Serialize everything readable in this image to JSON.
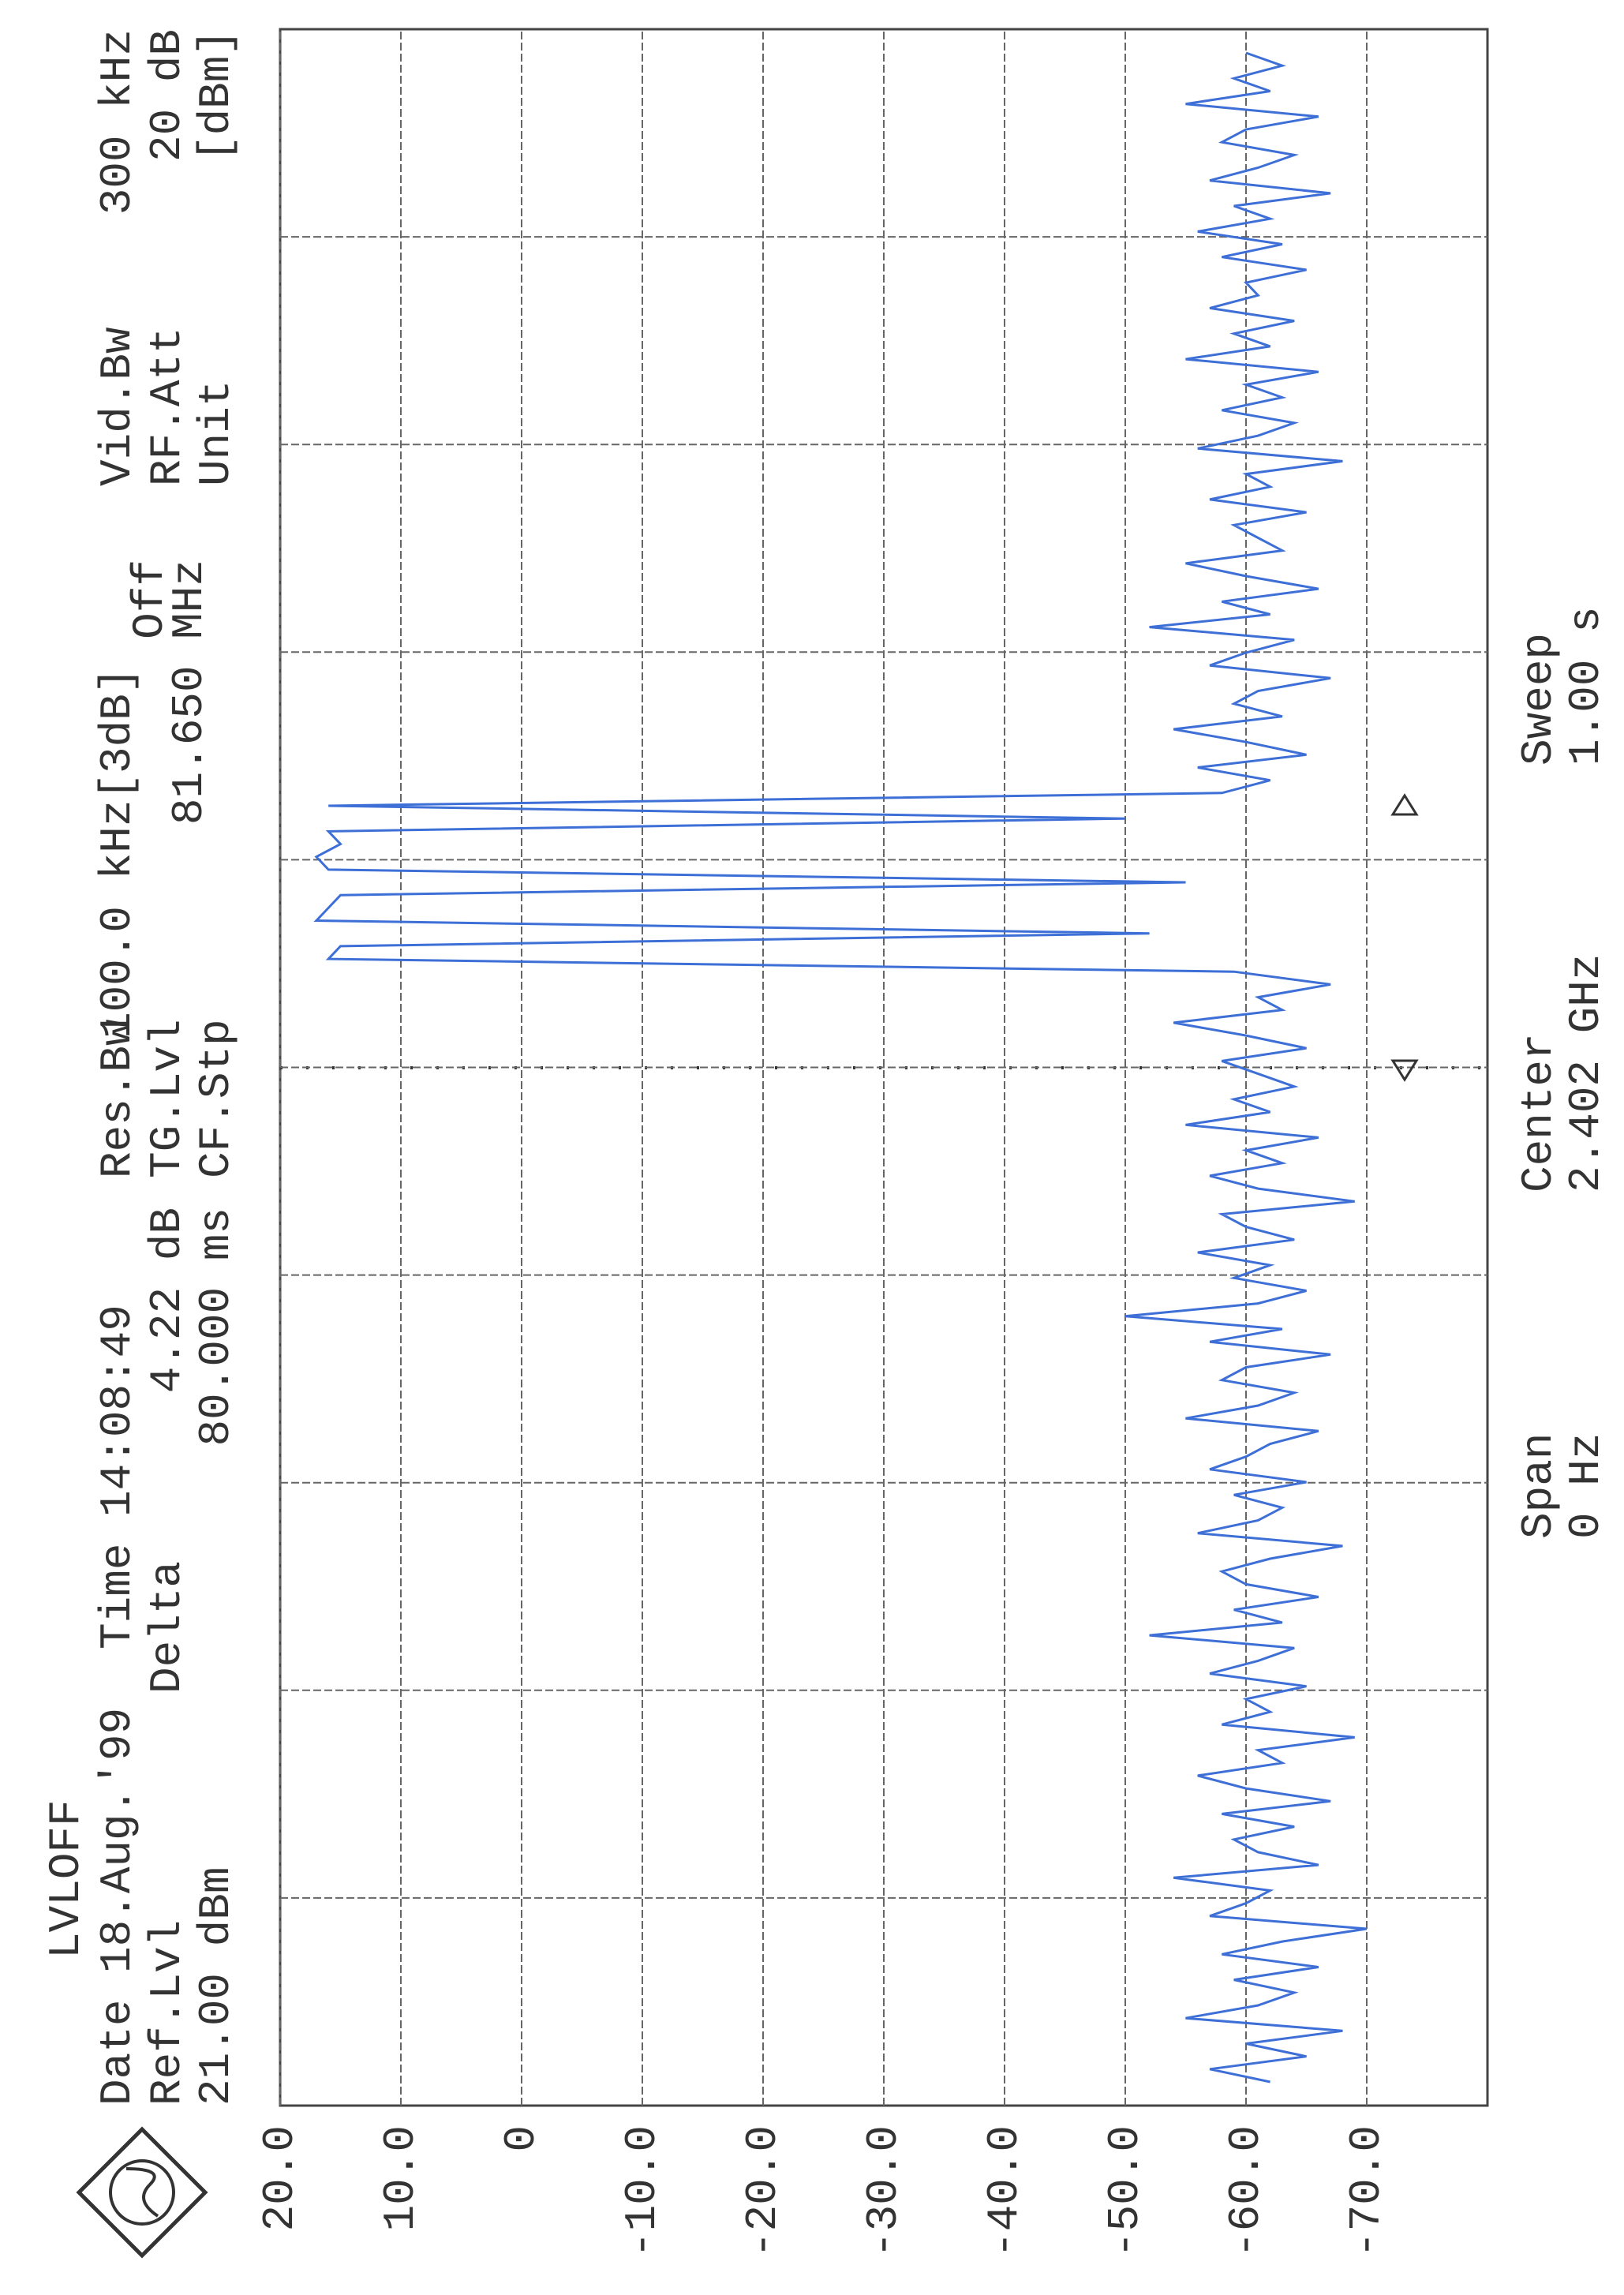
{
  "header": {
    "mode": "LVLOFF",
    "date": "Date 18.Aug.'99",
    "time": "Time 14:08:49",
    "ref_label": "Ref.Lvl",
    "ref_value": "21.00 dBm",
    "delta_label": "Delta",
    "delta_level": "4.22 dB",
    "delta_time": "80.000 ms",
    "res_bw_label": "Res.Bw",
    "res_bw_value": "100.0 kHz[3dB]",
    "tg_label": "TG.Lvl",
    "tg_value": "Off",
    "cf_label": "CF.Stp",
    "cf_value": "81.650 MHz",
    "vid_bw_label": "Vid.Bw",
    "vid_bw_value": "300 kHz",
    "rf_att_label": "RF.Att",
    "rf_att_value": "20 dB",
    "unit_label": "Unit",
    "unit_value": "[dBm]"
  },
  "footer": {
    "span_label": "Span",
    "span_value": "0 Hz",
    "center_label": "Center",
    "center_value": "2.402 GHz",
    "sweep_label": "Sweep",
    "sweep_value": "1.00 s"
  },
  "chart_data": {
    "type": "line",
    "color": "#3d6fd6",
    "grid": true,
    "ylim": [
      -80,
      20
    ],
    "yticks": [
      {
        "value": 20,
        "label": "20.0"
      },
      {
        "value": 10,
        "label": "10.0"
      },
      0,
      {
        "value": -10,
        "label": "-10.0"
      },
      {
        "value": -20,
        "label": "-20.0"
      },
      {
        "value": -30,
        "label": "-30.0"
      },
      {
        "value": -40,
        "label": "-40.0"
      },
      {
        "value": -50,
        "label": "-50.0"
      },
      {
        "value": -60,
        "label": "-60.0"
      },
      {
        "value": -70,
        "label": "-70.0"
      }
    ],
    "values": [
      -62,
      -57,
      -65,
      -60,
      -68,
      -55,
      -61,
      -64,
      -59,
      -66,
      -58,
      -63,
      -70,
      -57,
      -60,
      -62,
      -54,
      -66,
      -61,
      -59,
      -64,
      -58,
      -67,
      -60,
      -56,
      -63,
      -61,
      -69,
      -58,
      -62,
      -60,
      -65,
      -57,
      -61,
      -64,
      -52,
      -63,
      -59,
      -66,
      -60,
      -58,
      -62,
      -68,
      -56,
      -61,
      -63,
      -59,
      -65,
      -57,
      -60,
      -62,
      -66,
      -55,
      -61,
      -64,
      -58,
      -60,
      -67,
      -57,
      -63,
      -50,
      -61,
      -65,
      -59,
      -62,
      -56,
      -64,
      -60,
      -58,
      -69,
      -61,
      -57,
      -63,
      -60,
      -66,
      -55,
      -62,
      -59,
      -64,
      -61,
      -58,
      -65,
      -60,
      -54,
      -63,
      -61,
      -67,
      -59,
      16,
      15,
      -52,
      17,
      16,
      15,
      -55,
      16,
      17,
      15,
      16,
      -50,
      16,
      -58,
      -62,
      -56,
      -65,
      -60,
      -54,
      -63,
      -59,
      -61,
      -67,
      -57,
      -60,
      -64,
      -52,
      -62,
      -58,
      -66,
      -60,
      -55,
      -63,
      -61,
      -59,
      -65,
      -57,
      -62,
      -60,
      -68,
      -56,
      -61,
      -64,
      -58,
      -63,
      -60,
      -66,
      -55,
      -62,
      -59,
      -64,
      -57,
      -61,
      -60,
      -65,
      -58,
      -63,
      -56,
      -62,
      -59,
      -67,
      -57,
      -61,
      -64,
      -58,
      -60,
      -66,
      -55,
      -62,
      -59,
      -63,
      -60
    ]
  }
}
